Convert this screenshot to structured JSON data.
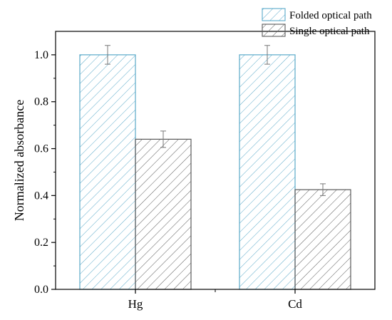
{
  "chart_data": {
    "type": "bar",
    "categories": [
      "Hg",
      "Cd"
    ],
    "series": [
      {
        "name": "Folded optical path",
        "values": [
          1.0,
          1.0
        ],
        "errors": [
          0.04,
          0.04
        ],
        "color": "#5aa9c9",
        "pattern": "diagonal-hatch"
      },
      {
        "name": "Single optical path",
        "values": [
          0.64,
          0.425
        ],
        "errors": [
          0.035,
          0.025
        ],
        "color": "#5a5a5a",
        "pattern": "diagonal-hatch"
      }
    ],
    "xlabel": "",
    "ylabel": "Normalized absorbance",
    "ylim": [
      0,
      1.1
    ],
    "yticks": [
      "0.0",
      "0.2",
      "0.4",
      "0.6",
      "0.8",
      "1.0"
    ],
    "grid": false,
    "legend_position": "top-right"
  }
}
